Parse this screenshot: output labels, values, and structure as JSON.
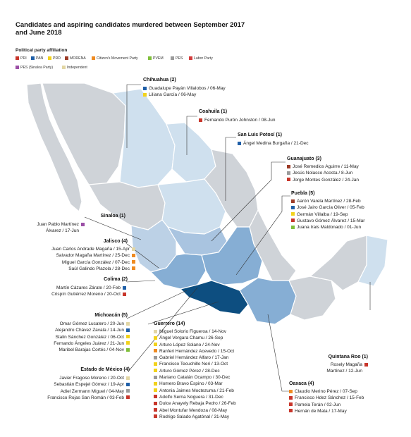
{
  "title": "Candidates and aspiring candidates murdered between September 2017 and June 2018",
  "legend": {
    "heading": "Political party affiliation",
    "parties": [
      {
        "name": "PRI",
        "color": "#c8362b"
      },
      {
        "name": "PAN",
        "color": "#1f5fa8"
      },
      {
        "name": "PRD",
        "color": "#f2d21b"
      },
      {
        "name": "MORENA",
        "color": "#9c3b27"
      },
      {
        "name": "Citizen's Movement Party",
        "color": "#ef8b22"
      },
      {
        "name": "PVEM",
        "color": "#7fbf3a"
      },
      {
        "name": "PES",
        "color": "#9a9a9a"
      },
      {
        "name": "Labor Party",
        "color": "#d23c3c"
      },
      {
        "name": "PES (Sinaloa Party)",
        "color": "#9b4fa6"
      },
      {
        "name": "Independent",
        "color": "#e2d6a4"
      }
    ]
  },
  "states": {
    "chihuahua": {
      "label": "Chihuahua (2)",
      "victims": [
        {
          "text": "Guadalupe Payán Villalobos / 06-May",
          "color": "#1f5fa8"
        },
        {
          "text": "Liliana García / 06-May",
          "color": "#f2d21b"
        }
      ]
    },
    "coahuila": {
      "label": "Coahuila (1)",
      "victims": [
        {
          "text": "Fernando Purón Johnston / 08-Jun",
          "color": "#c8362b"
        }
      ]
    },
    "slp": {
      "label": "San Luis Potosí (1)",
      "victims": [
        {
          "text": "Ángel Medina Burgaña / 21-Dec",
          "color": "#1f5fa8"
        }
      ]
    },
    "guanajuato": {
      "label": "Guanajuato (3)",
      "victims": [
        {
          "text": "José Remedios Aguirre / 11-May",
          "color": "#9c3b27"
        },
        {
          "text": "Jesús Nolasco Acosta / 8-Jun",
          "color": "#9a9a9a"
        },
        {
          "text": "Jorge Montes González / 24-Jan",
          "color": "#c8362b"
        }
      ]
    },
    "puebla": {
      "label": "Puebla (5)",
      "victims": [
        {
          "text": "Aarón Varela Martínez / 28-Feb",
          "color": "#9c3b27"
        },
        {
          "text": "José Jairo García Oliver / 05-Feb",
          "color": "#1f5fa8"
        },
        {
          "text": "Germán Villalba / 19-Sep",
          "color": "#f2d21b"
        },
        {
          "text": "Gustavo Gómez Álvarez / 15-Mar",
          "color": "#c8362b"
        },
        {
          "text": "Juana Irais Maldonado / 01-Jun",
          "color": "#7fbf3a"
        }
      ]
    },
    "sinaloa": {
      "label": "Sinaloa (1)",
      "victims": [
        {
          "text": "Juan Pablo Martínez",
          "color": "#9b4fa6"
        },
        {
          "text": "Álvarez / 17-Jun",
          "color": null
        }
      ]
    },
    "jalisco": {
      "label": "Jalisco (4)",
      "victims": [
        {
          "text": "Juan Carlos Andrade Magaña / 15-Apr",
          "color": "#e2d6a4"
        },
        {
          "text": "Salvador Magaña Martínez / 25-Dec",
          "color": "#ef8b22"
        },
        {
          "text": "Miguel García González / 07-Dec",
          "color": "#ef8b22"
        },
        {
          "text": "Saúl Galindo Plazola / 28-Dec",
          "color": "#ef8b22"
        }
      ]
    },
    "colima": {
      "label": "Colima (2)",
      "victims": [
        {
          "text": "Martín Cázares Zárate / 20-Feb",
          "color": "#1f5fa8"
        },
        {
          "text": "Crispín Gutiérrez Moreno / 20-Oct",
          "color": "#c8362b"
        }
      ]
    },
    "michoacan": {
      "label": "Michoacán (5)",
      "victims": [
        {
          "text": "Omar Gómez Lucatero / 20-Jun",
          "color": "#e2d6a4"
        },
        {
          "text": "Alejandro Chávez Zavala / 14-Jun",
          "color": "#1f5fa8"
        },
        {
          "text": "Stalin Sánchez González / 06-Oct",
          "color": "#f2d21b"
        },
        {
          "text": "Fernando Ángeles Juárez / 21-Jun",
          "color": "#f2d21b"
        },
        {
          "text": "Maribel Barajas Cortés / 04-Nov",
          "color": "#7fbf3a"
        }
      ]
    },
    "edomex": {
      "label": "Estado de México (4)",
      "victims": [
        {
          "text": "Javier Fragoso Moreno / 20-Oct",
          "color": "#e2d6a4"
        },
        {
          "text": "Sebastián Espejel Gómez / 19-Apr",
          "color": "#1f5fa8"
        },
        {
          "text": "Adiel Zermann Miguel / 04-May",
          "color": "#9a9a9a"
        },
        {
          "text": "Francisco Rojas San Román / 03-Feb",
          "color": "#c8362b"
        }
      ]
    },
    "guerrero": {
      "label": "Guerrero (14)",
      "victims": [
        {
          "text": "Miguel Solorio Figueroa / 14-Nov",
          "color": "#e2d6a4"
        },
        {
          "text": "Ángel Vergara Chamu / 26-Sep",
          "color": "#f2d21b"
        },
        {
          "text": "Arturo López Solano / 24-Nov",
          "color": "#f2d21b"
        },
        {
          "text": "Ranferi Hernández Acevedo / 15-Oct",
          "color": "#ef8b22"
        },
        {
          "text": "Gabriel Hernández Alfaro / 17-Jan",
          "color": "#9a9a9a"
        },
        {
          "text": "Francisco Tecuchillo Neri / 13-Oct",
          "color": "#f2d21b"
        },
        {
          "text": "Arturo Gómez Pérez / 28-Dec",
          "color": "#f2d21b"
        },
        {
          "text": "Mariano Catalán Ocampo / 30-Dec",
          "color": "#9a9a9a"
        },
        {
          "text": "Homero Bravo Espino / 03-Mar",
          "color": "#f2d21b"
        },
        {
          "text": "Antonia Jaimes Moctezuma / 21-Feb",
          "color": "#f2d21b"
        },
        {
          "text": "Adolfo Serna Noguera / 31-Dec",
          "color": "#c8362b"
        },
        {
          "text": "Dulce Anayely Rebaja Pedro / 26-Feb",
          "color": "#c8362b"
        },
        {
          "text": "Abel Montufar Mendoza / 08-May",
          "color": "#c8362b"
        },
        {
          "text": "Rodrigo Salado Agatónal / 31-May",
          "color": "#c8362b"
        }
      ]
    },
    "quintanaroo": {
      "label": "Quintana Roo (1)",
      "victims": [
        {
          "text": "Rosely Magaña",
          "color": "#c8362b"
        },
        {
          "text": "Martínez / 12-Jun",
          "color": null
        }
      ]
    },
    "oaxaca": {
      "label": "Oaxaca (4)",
      "victims": [
        {
          "text": "Claudio Merino Pérez / 07-Sep",
          "color": "#ef8b22"
        },
        {
          "text": "Francisco Hdez Sánchez / 15-Feb",
          "color": "#c8362b"
        },
        {
          "text": "Pamela Terán / 02-Jun",
          "color": "#c8362b"
        },
        {
          "text": "Hernán de Mata / 17-May",
          "color": "#c8362b"
        }
      ]
    }
  }
}
